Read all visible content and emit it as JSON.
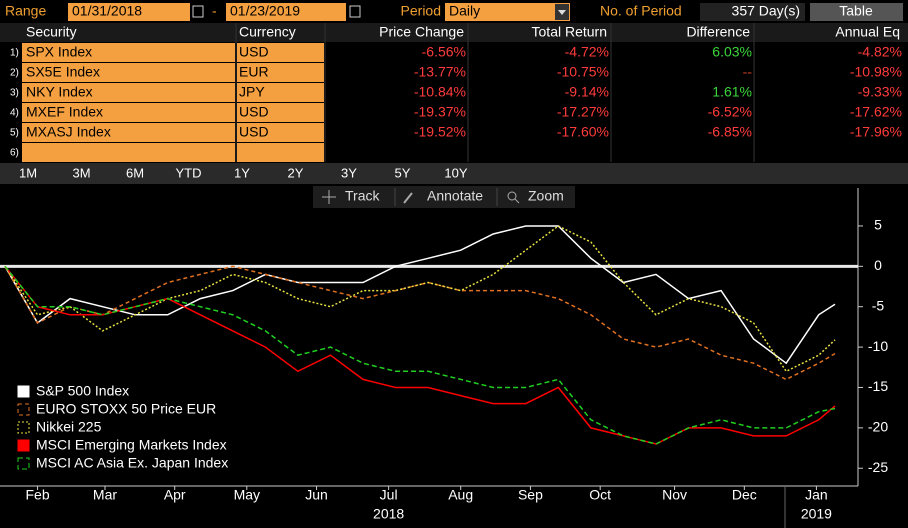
{
  "header": {
    "range_label": "Range",
    "start_date": "01/31/2018",
    "separator": "-",
    "end_date": "01/23/2019",
    "period_label": "Period",
    "period": "Daily",
    "periods_label": "No. of Period",
    "periods": "357 Day(s)",
    "table_button": "Table"
  },
  "table": {
    "columns": [
      "Security",
      "Currency",
      "Price Change",
      "Total Return",
      "Difference",
      "Annual Eq"
    ],
    "rows": [
      {
        "num": "1)",
        "security": "SPX Index",
        "currency": "USD",
        "price_change": "-6.56%",
        "total_return": "-4.72%",
        "difference": "6.03%",
        "annual_eq": "-4.82%"
      },
      {
        "num": "2)",
        "security": "SX5E Index",
        "currency": "EUR",
        "price_change": "-13.77%",
        "total_return": "-10.75%",
        "difference": "--",
        "annual_eq": "-10.98%"
      },
      {
        "num": "3)",
        "security": "NKY Index",
        "currency": "JPY",
        "price_change": "-10.84%",
        "total_return": "-9.14%",
        "difference": "1.61%",
        "annual_eq": "-9.33%"
      },
      {
        "num": "4)",
        "security": "MXEF Index",
        "currency": "USD",
        "price_change": "-19.37%",
        "total_return": "-17.27%",
        "difference": "-6.52%",
        "annual_eq": "-17.62%"
      },
      {
        "num": "5)",
        "security": "MXASJ Index",
        "currency": "USD",
        "price_change": "-19.52%",
        "total_return": "-17.60%",
        "difference": "-6.85%",
        "annual_eq": "-17.96%"
      },
      {
        "num": "6)"
      }
    ]
  },
  "range_buttons": [
    "1M",
    "3M",
    "6M",
    "YTD",
    "1Y",
    "2Y",
    "3Y",
    "5Y",
    "10Y"
  ],
  "toolbar": [
    "Track",
    "Annotate",
    "Zoom"
  ],
  "chart_data": {
    "type": "line",
    "x": [
      0,
      14,
      28,
      42,
      56,
      70,
      84,
      98,
      112,
      126,
      140,
      154,
      168,
      182,
      196,
      210,
      224,
      238,
      252,
      266,
      280,
      294,
      308,
      322,
      336,
      350,
      357
    ],
    "xlim": [
      0,
      357
    ],
    "xticks": [
      {
        "value": 14,
        "label": "Feb"
      },
      {
        "value": 43,
        "label": "Mar"
      },
      {
        "value": 73,
        "label": "Apr"
      },
      {
        "value": 104,
        "label": "May"
      },
      {
        "value": 134,
        "label": "Jun"
      },
      {
        "value": 165,
        "label": "Jul"
      },
      {
        "value": 196,
        "label": "Aug"
      },
      {
        "value": 226,
        "label": "Sep"
      },
      {
        "value": 256,
        "label": "Oct"
      },
      {
        "value": 288,
        "label": "Nov"
      },
      {
        "value": 318,
        "label": "Dec"
      },
      {
        "value": 349,
        "label": "Jan"
      }
    ],
    "year_labels": [
      {
        "value": 165,
        "label": "2018"
      },
      {
        "value": 349,
        "label": "2019"
      }
    ],
    "ylim": [
      -27.2,
      9.7
    ],
    "yticks": [
      5,
      0,
      -5,
      -10,
      -15,
      -20,
      -25
    ],
    "reference_line": 0,
    "legend": "bottom-left",
    "series": [
      {
        "name": "S&P 500 Index",
        "color": "#ffffff",
        "dash": "none",
        "values": [
          0,
          -7,
          -4,
          -5,
          -6,
          -6,
          -4,
          -3,
          -1,
          -2,
          -2,
          -2,
          0,
          1,
          2,
          4,
          5,
          5,
          1,
          -2,
          -1,
          -4,
          -3,
          -9,
          -12,
          -6,
          -4.7
        ]
      },
      {
        "name": "EURO STOXX 50 Price EUR",
        "color": "#e07020",
        "dash": "4,3",
        "values": [
          0,
          -7,
          -5,
          -6,
          -4,
          -2,
          -1,
          0,
          -1,
          -2,
          -3,
          -4,
          -3,
          -2,
          -3,
          -3,
          -3,
          -4,
          -6,
          -9,
          -10,
          -9,
          -11,
          -12,
          -14,
          -12,
          -10.8
        ]
      },
      {
        "name": "Nikkei 225",
        "color": "#e8e040",
        "dash": "2,2",
        "values": [
          0,
          -6,
          -5,
          -8,
          -6,
          -4,
          -3,
          -1,
          -2,
          -4,
          -5,
          -3,
          -3,
          -2,
          -3,
          -1,
          2,
          5,
          3,
          -2,
          -6,
          -4,
          -5,
          -7,
          -13,
          -11,
          -9.1
        ]
      },
      {
        "name": "MSCI Emerging Markets Index",
        "color": "#ff0000",
        "dash": "none",
        "values": [
          0,
          -5,
          -6,
          -6,
          -5,
          -4,
          -6,
          -8,
          -10,
          -13,
          -11,
          -14,
          -15,
          -15,
          -16,
          -17,
          -17,
          -15,
          -20,
          -21,
          -22,
          -20,
          -20,
          -21,
          -21,
          -19,
          -17.3
        ]
      },
      {
        "name": "MSCI AC Asia Ex. Japan Index",
        "color": "#20d020",
        "dash": "5,3",
        "values": [
          0,
          -5,
          -5,
          -6,
          -5,
          -4,
          -5,
          -6,
          -8,
          -11,
          -10,
          -12,
          -13,
          -13,
          -14,
          -15,
          -15,
          -14,
          -19,
          -21,
          -22,
          -20,
          -19,
          -20,
          -20,
          -18,
          -17.6
        ]
      }
    ]
  }
}
